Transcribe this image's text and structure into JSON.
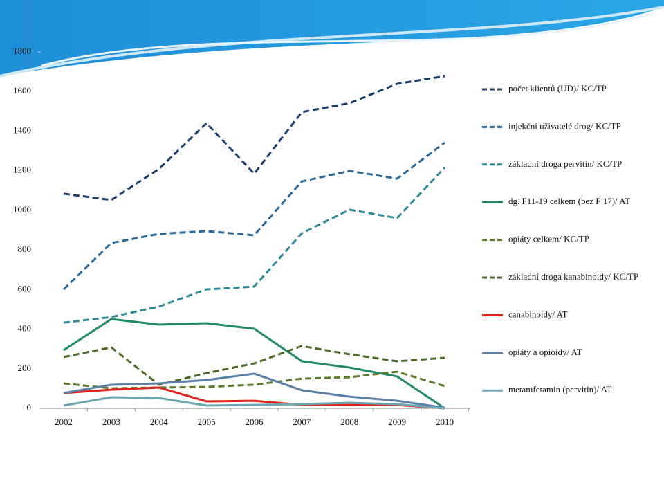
{
  "chart_data": {
    "type": "line",
    "categories": [
      "2002",
      "2003",
      "2004",
      "2005",
      "2006",
      "2007",
      "2008",
      "2009",
      "2010"
    ],
    "ylim": [
      0,
      1800
    ],
    "yticks": [
      0,
      200,
      400,
      600,
      800,
      1000,
      1200,
      1400,
      1600,
      1800
    ],
    "grid": false,
    "legend": "right",
    "series": [
      {
        "name": "počet klientů  (UD)/ KC/TP",
        "color": "#1b3f6e",
        "dash": true,
        "values": [
          1084,
          1052,
          1209,
          1440,
          1185,
          1496,
          1541,
          1639,
          1678
        ]
      },
      {
        "name": "injekční uživatelé drog/ KC/TP",
        "color": "#2a6a9c",
        "dash": true,
        "values": [
          601,
          835,
          881,
          895,
          874,
          1146,
          1199,
          1160,
          1342
        ]
      },
      {
        "name": "základní droga pervitin/ KC/TP",
        "color": "#2e8a9a",
        "dash": true,
        "values": [
          433,
          461,
          514,
          601,
          615,
          884,
          1003,
          961,
          1216
        ]
      },
      {
        "name": "dg. F11-19 celkem (bez F 17)/ AT",
        "color": "#1f8a6a",
        "dash": false,
        "values": [
          294,
          451,
          423,
          430,
          402,
          238,
          206,
          161,
          0
        ]
      },
      {
        "name": "opiáty celkem/ KC/TP",
        "color": "#5c7a2c",
        "dash": true,
        "values": [
          126,
          101,
          105,
          108,
          119,
          150,
          157,
          185,
          112
        ]
      },
      {
        "name": "základní droga kanabinoidy/ KC/TP",
        "color": "#4f6b28",
        "dash": true,
        "values": [
          259,
          308,
          119,
          178,
          227,
          315,
          273,
          238,
          255
        ]
      },
      {
        "name": "canabinoidy/ AT",
        "color": "#e0231e",
        "dash": false,
        "values": [
          77,
          94,
          105,
          35,
          38,
          17,
          17,
          17,
          0
        ]
      },
      {
        "name": "opiáty a opioidy/ AT",
        "color": "#5b7fa6",
        "dash": false,
        "values": [
          77,
          119,
          126,
          143,
          175,
          91,
          59,
          38,
          3
        ]
      },
      {
        "name": "metamfetamin (pervitin)/ AT",
        "color": "#6aa7b0",
        "dash": false,
        "values": [
          14,
          56,
          52,
          14,
          17,
          21,
          28,
          21,
          0
        ]
      }
    ]
  }
}
